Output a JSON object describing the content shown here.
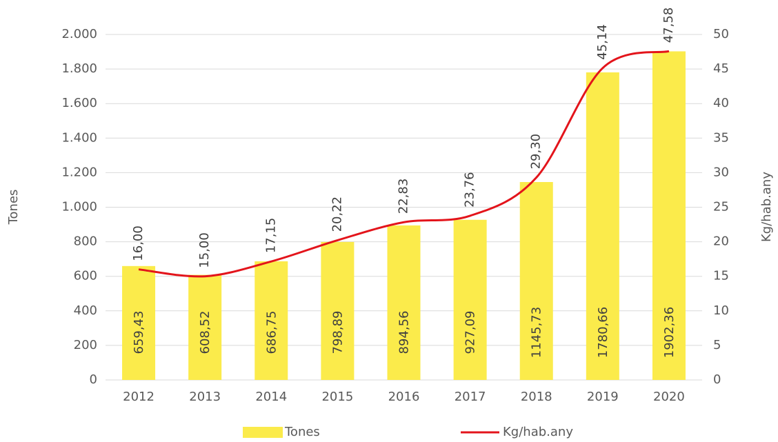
{
  "chart_data": {
    "type": "combo",
    "categories": [
      "2012",
      "2013",
      "2014",
      "2015",
      "2016",
      "2017",
      "2018",
      "2019",
      "2020"
    ],
    "series": [
      {
        "name": "Tones",
        "type": "bar",
        "color": "#fbeb4b",
        "values": [
          659.43,
          608.52,
          686.75,
          798.89,
          894.56,
          927.09,
          1145.73,
          1780.66,
          1902.36
        ],
        "value_labels": [
          "659,43",
          "608,52",
          "686,75",
          "798,89",
          "894,56",
          "927,09",
          "1145,73",
          "1780,66",
          "1902,36"
        ]
      },
      {
        "name": "Kg/hab.any",
        "type": "line",
        "axis": "y2",
        "color": "#e3141b",
        "values": [
          16.0,
          15.0,
          17.15,
          20.22,
          22.83,
          23.76,
          29.3,
          45.14,
          47.58
        ],
        "value_labels": [
          "16,00",
          "15,00",
          "17,15",
          "20,22",
          "22,83",
          "23,76",
          "29,30",
          "45,14",
          "47,58"
        ]
      }
    ],
    "ylabel": "Tones",
    "y2label": "Kg/hab.any",
    "ylim": [
      0,
      2000
    ],
    "yticks": [
      0,
      200,
      400,
      600,
      800,
      {
        "value": 1000,
        "label": "1.000"
      },
      {
        "value": 1200,
        "label": "1.200"
      },
      {
        "value": 1400,
        "label": "1.400"
      },
      {
        "value": 1600,
        "label": "1.600"
      },
      {
        "value": 1800,
        "label": "1.800"
      },
      {
        "value": 2000,
        "label": "2.000"
      }
    ],
    "y2lim": [
      0,
      50
    ],
    "y2ticks": [
      0,
      5,
      10,
      15,
      20,
      25,
      30,
      35,
      40,
      45,
      50
    ],
    "grid": true,
    "legend": "bottom"
  }
}
